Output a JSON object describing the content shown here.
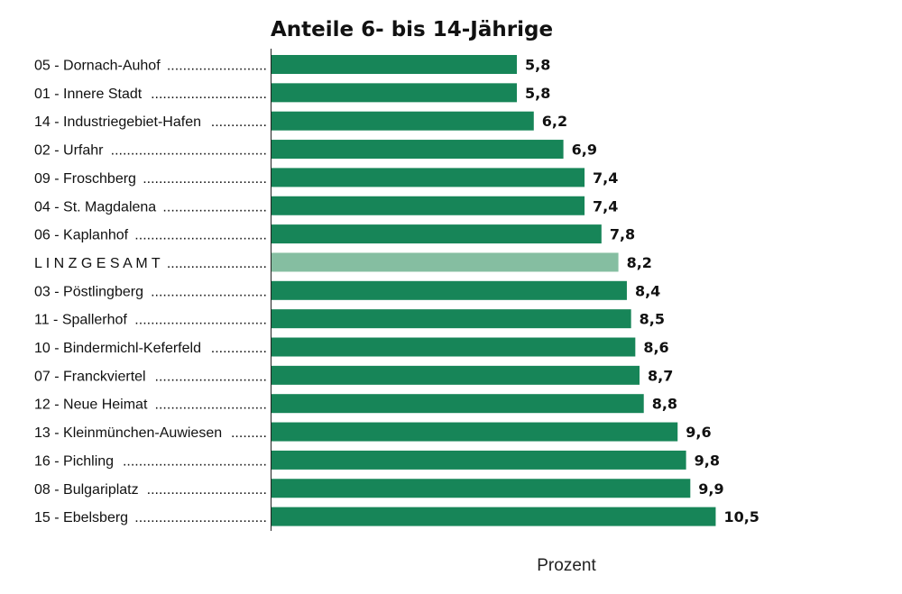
{
  "chart_data": {
    "type": "bar",
    "orientation": "horizontal",
    "title": "Anteile 6- bis 14-Jährige",
    "xlabel": "Prozent",
    "ylabel": "",
    "xlim": [
      0,
      10.5
    ],
    "grid": false,
    "categories": [
      "05 - Dornach-Auhof",
      "01 - Innere Stadt",
      "14 - Industriegebiet-Hafen",
      "02 - Urfahr",
      "09 - Froschberg",
      "04 - St. Magdalena",
      "06 - Kaplanhof",
      "L I N Z   G E S A M T",
      "03 - Pöstlingberg",
      "11 - Spallerhof",
      "10 - Bindermichl-Keferfeld",
      "07 - Franckviertel",
      "12 - Neue Heimat",
      "13 - Kleinmünchen-Auwiesen",
      "16 - Pichling",
      "08 - Bulgariplatz",
      "15 - Ebelsberg"
    ],
    "values": [
      5.8,
      5.8,
      6.2,
      6.9,
      7.4,
      7.4,
      7.8,
      8.2,
      8.4,
      8.5,
      8.6,
      8.7,
      8.8,
      9.6,
      9.8,
      9.9,
      10.5
    ],
    "value_labels": [
      "5,8",
      "5,8",
      "6,2",
      "6,9",
      "7,4",
      "7,4",
      "7,8",
      "8,2",
      "8,4",
      "8,5",
      "8,6",
      "8,7",
      "8,8",
      "9,6",
      "9,8",
      "9,9",
      "10,5"
    ],
    "highlight_category": "L I N Z   G E S A M T",
    "colors": {
      "bar": "#178558",
      "highlight": "#85bea1",
      "axis": "#222222",
      "text": "#111111"
    }
  }
}
